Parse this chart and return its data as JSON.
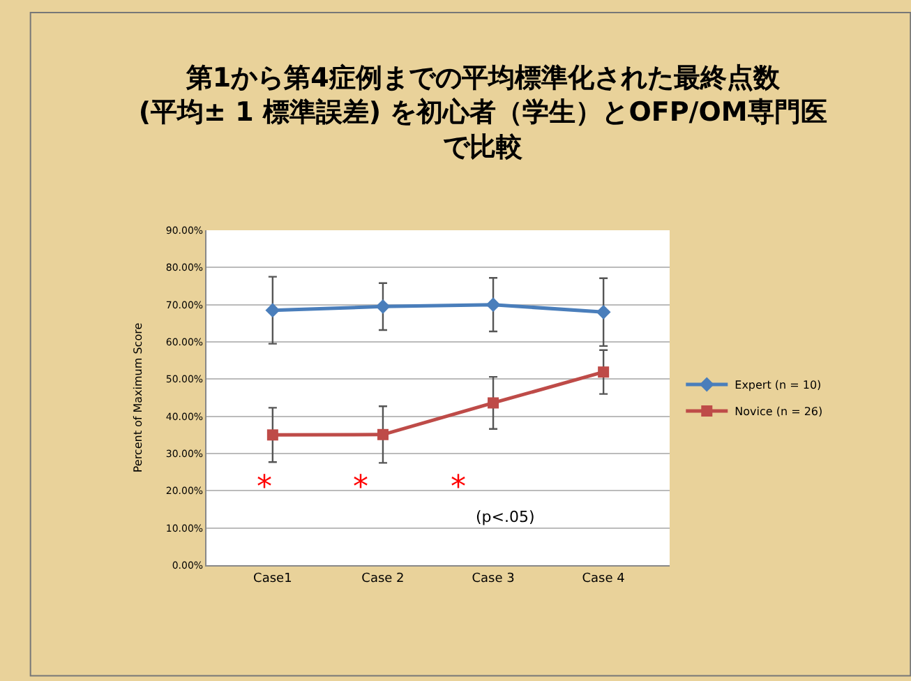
{
  "chart_data": {
    "type": "line",
    "title": "第1から第4症例までの平均標準化された最終点数(平均± 1 標準誤差) を初心者（学生）とOFP/OM専門医で比較",
    "ylabel": "Percent of Maximum Score",
    "categories": [
      "Case1",
      "Case 2",
      "Case 3",
      "Case 4"
    ],
    "series": [
      {
        "name": "Expert (n = 10)",
        "color": "#4a7ebb",
        "marker": "diamond",
        "values": [
          68.5,
          69.5,
          70.0,
          68.0
        ],
        "errors": [
          9.0,
          6.3,
          7.2,
          9.1
        ]
      },
      {
        "name": "Novice (n = 26)",
        "color": "#be4b48",
        "marker": "square",
        "values": [
          35.0,
          35.1,
          43.6,
          51.9
        ],
        "errors": [
          7.3,
          7.6,
          7.0,
          5.9
        ]
      }
    ],
    "ylim": [
      0,
      90
    ],
    "yticks": [
      {
        "value": 0,
        "label": "0.00%"
      },
      {
        "value": 10,
        "label": "10.00%"
      },
      {
        "value": 20,
        "label": "20.00%"
      },
      {
        "value": 30,
        "label": "30.00%"
      },
      {
        "value": 40,
        "label": "40.00%"
      },
      {
        "value": 50,
        "label": "50.00%"
      },
      {
        "value": 60,
        "label": "60.00%"
      },
      {
        "value": 70,
        "label": "70.00%"
      },
      {
        "value": 80,
        "label": "80.00%"
      },
      {
        "value": 90,
        "label": "90.00%"
      }
    ],
    "grid": "y",
    "legend": "right",
    "line_style": "solid",
    "annotations": [
      "*",
      "*",
      "*",
      "(p<.05)"
    ]
  }
}
